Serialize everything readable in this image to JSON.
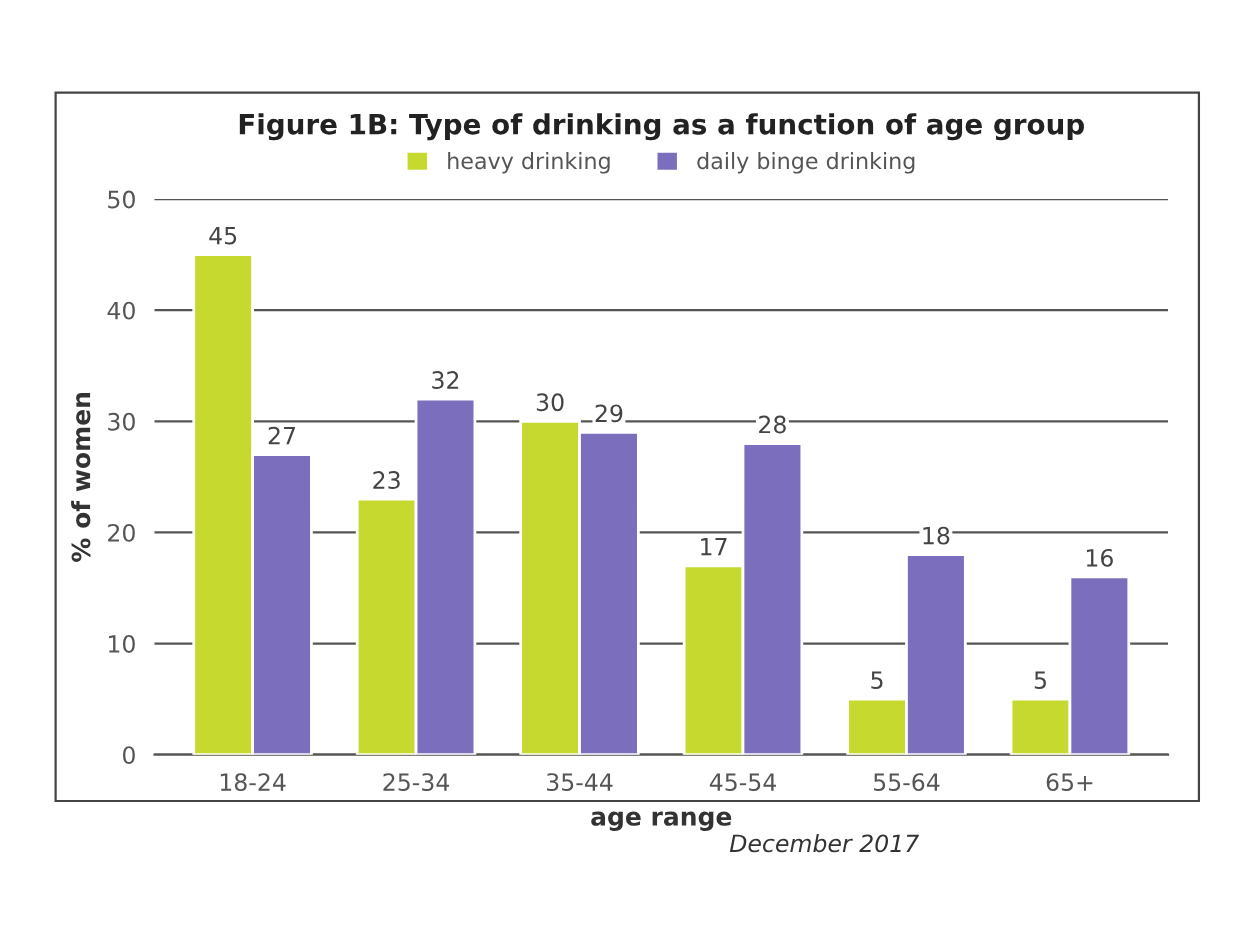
{
  "chart_data": {
    "type": "bar",
    "title": "Figure 1B: Type of drinking as a function of age group",
    "xlabel": "age range",
    "ylabel": "% of women",
    "categories": [
      "18-24",
      "25-34",
      "35-44",
      "45-54",
      "55-64",
      "65+"
    ],
    "series": [
      {
        "name": "heavy drinking",
        "color": "#c5d92f",
        "values": [
          45,
          23,
          30,
          17,
          5,
          5
        ]
      },
      {
        "name": "daily binge drinking",
        "color": "#7b6fbd",
        "values": [
          27,
          32,
          29,
          28,
          18,
          16
        ]
      }
    ],
    "ylim": [
      0,
      50
    ],
    "yticks": [
      0,
      10,
      20,
      30,
      40,
      50
    ],
    "grid": "y",
    "legend": "top",
    "data_labels": true,
    "annotations": [
      "December 2017"
    ]
  }
}
